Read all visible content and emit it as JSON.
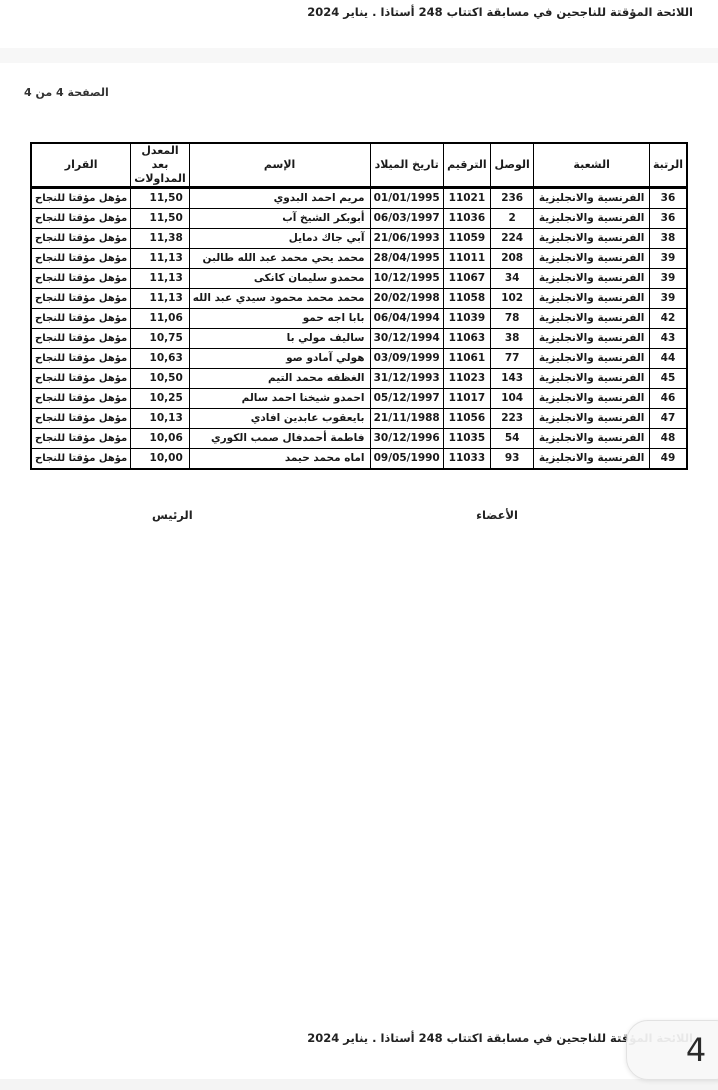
{
  "page": {
    "header_line": "اللائحة المؤقتة للناجحين في مسابقة اكتتاب 248 أستاذا . يناير 2024",
    "page_label": "الصفحة 4 من 4",
    "footer_line": "اللائحة المؤقتة للناجحين في مسابقة اكتتاب 248 أستاذا . يناير 2024",
    "page_bubble": "4"
  },
  "signatures": {
    "members_label": "الأعضاء",
    "president_label": "الرئيس"
  },
  "table": {
    "headers": [
      "الرتبة",
      "الشعبة",
      "الوصل",
      "الترقيم",
      "تاريخ الميلاد",
      "الإسم",
      "المعدل بعد المداولات",
      "القرار"
    ],
    "rows": [
      {
        "rank": "36",
        "section": "الفرنسية والانجليزية",
        "receipt": "236",
        "number": "11021",
        "birth_date": "01/01/1995",
        "name": "مريم احمد البدوي",
        "average": "11,50",
        "decision": "مؤهل مؤقتا للنجاح"
      },
      {
        "rank": "36",
        "section": "الفرنسية والانجليزية",
        "receipt": "2",
        "number": "11036",
        "birth_date": "06/03/1997",
        "name": "أبوبكر الشيخ آب",
        "average": "11,50",
        "decision": "مؤهل مؤقتا للنجاح"
      },
      {
        "rank": "38",
        "section": "الفرنسية والانجليزية",
        "receipt": "224",
        "number": "11059",
        "birth_date": "21/06/1993",
        "name": "آبي جاك دمايل",
        "average": "11,38",
        "decision": "مؤهل مؤقتا للنجاح"
      },
      {
        "rank": "39",
        "section": "الفرنسية والانجليزية",
        "receipt": "208",
        "number": "11011",
        "birth_date": "28/04/1995",
        "name": "محمد يحي محمد عبد الله طالبن",
        "average": "11,13",
        "decision": "مؤهل مؤقتا للنجاح"
      },
      {
        "rank": "39",
        "section": "الفرنسية والانجليزية",
        "receipt": "34",
        "number": "11067",
        "birth_date": "10/12/1995",
        "name": "محمدو سليمان كانكى",
        "average": "11,13",
        "decision": "مؤهل مؤقتا للنجاح"
      },
      {
        "rank": "39",
        "section": "الفرنسية والانجليزية",
        "receipt": "102",
        "number": "11058",
        "birth_date": "20/02/1998",
        "name": "محمد محمد محمود سيدي عبد الله",
        "average": "11,13",
        "decision": "مؤهل مؤقتا للنجاح"
      },
      {
        "rank": "42",
        "section": "الفرنسية والانجليزية",
        "receipt": "78",
        "number": "11039",
        "birth_date": "06/04/1994",
        "name": "بابا اجه حمو",
        "average": "11,06",
        "decision": "مؤهل مؤقتا للنجاح"
      },
      {
        "rank": "43",
        "section": "الفرنسية والانجليزية",
        "receipt": "38",
        "number": "11063",
        "birth_date": "30/12/1994",
        "name": "ساليف مولي با",
        "average": "10,75",
        "decision": "مؤهل مؤقتا للنجاح"
      },
      {
        "rank": "44",
        "section": "الفرنسية والانجليزية",
        "receipt": "77",
        "number": "11061",
        "birth_date": "03/09/1999",
        "name": "هولي آمادو صو",
        "average": "10,63",
        "decision": "مؤهل مؤقتا للنجاح"
      },
      {
        "rank": "45",
        "section": "الفرنسية والانجليزية",
        "receipt": "143",
        "number": "11023",
        "birth_date": "31/12/1993",
        "name": "الغظفه محمد التيم",
        "average": "10,50",
        "decision": "مؤهل مؤقتا للنجاح"
      },
      {
        "rank": "46",
        "section": "الفرنسية والانجليزية",
        "receipt": "104",
        "number": "11017",
        "birth_date": "05/12/1997",
        "name": "احمدو شيخنا احمد سالم",
        "average": "10,25",
        "decision": "مؤهل مؤقتا للنجاح"
      },
      {
        "rank": "47",
        "section": "الفرنسية والانجليزية",
        "receipt": "223",
        "number": "11056",
        "birth_date": "21/11/1988",
        "name": "بايعقوب عابدين افادي",
        "average": "10,13",
        "decision": "مؤهل مؤقتا للنجاح"
      },
      {
        "rank": "48",
        "section": "الفرنسية والانجليزية",
        "receipt": "54",
        "number": "11035",
        "birth_date": "30/12/1996",
        "name": "فاطمة أحمدفال صمب الكوري",
        "average": "10,06",
        "decision": "مؤهل مؤقتا للنجاح"
      },
      {
        "rank": "49",
        "section": "الفرنسية والانجليزية",
        "receipt": "93",
        "number": "11033",
        "birth_date": "09/05/1990",
        "name": "اماه محمد حيمد",
        "average": "10,00",
        "decision": "مؤهل مؤقتا للنجاح"
      }
    ]
  },
  "colors": {
    "band": "#f7f7f7",
    "bubble_bg": "#f7f7f7",
    "bubble_border": "#e2e2e2",
    "table_border": "#000000",
    "text": "#1a1a1a"
  }
}
